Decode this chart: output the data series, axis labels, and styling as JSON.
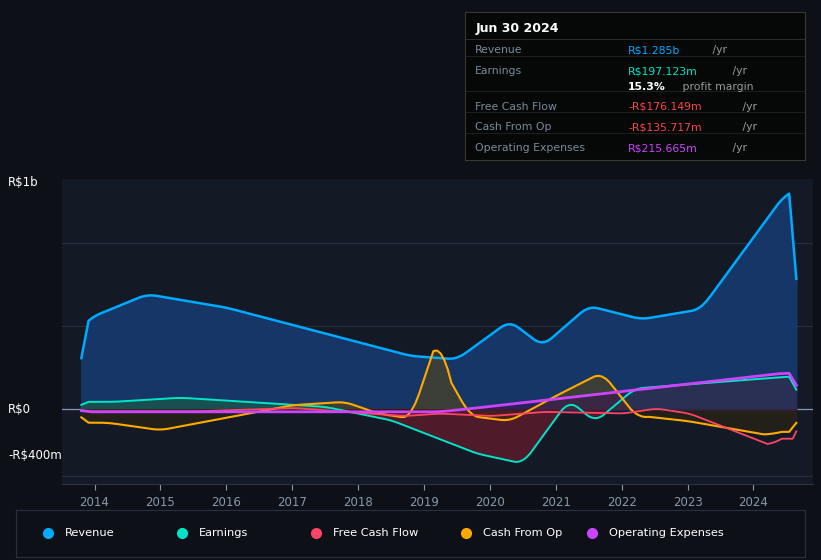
{
  "bg_color": "#0d1117",
  "plot_bg_color": "#131a25",
  "title": "Jun 30 2024",
  "ylabel_top": "R$1b",
  "ylabel_bottom": "-R$400m",
  "y0_label": "R$0",
  "xlim": [
    2013.5,
    2024.9
  ],
  "ylim": [
    -450,
    1380
  ],
  "x_ticks": [
    2014,
    2015,
    2016,
    2017,
    2018,
    2019,
    2020,
    2021,
    2022,
    2023,
    2024
  ],
  "grid_color": "#2a3548",
  "tick_color": "#8899aa",
  "revenue_color": "#00aaff",
  "earnings_color": "#00e5c8",
  "fcf_color": "#ff4466",
  "cashop_color": "#ffaa00",
  "opex_color": "#cc44ff",
  "legend_items": [
    {
      "label": "Revenue",
      "color": "#00aaff"
    },
    {
      "label": "Earnings",
      "color": "#00e5c8"
    },
    {
      "label": "Free Cash Flow",
      "color": "#ff4466"
    },
    {
      "label": "Cash From Op",
      "color": "#ffaa00"
    },
    {
      "label": "Operating Expenses",
      "color": "#cc44ff"
    }
  ],
  "info_rows": [
    {
      "label": "Revenue",
      "value": "R$1.285b",
      "unit": " /yr",
      "value_color": "#00aaff"
    },
    {
      "label": "Earnings",
      "value": "R$197.123m",
      "unit": " /yr",
      "value_color": "#00e5c8"
    },
    {
      "label": "",
      "value": "15.3%",
      "unit": " profit margin",
      "value_color": "#ffffff",
      "bold": true
    },
    {
      "label": "Free Cash Flow",
      "value": "-R$176.149m",
      "unit": " /yr",
      "value_color": "#ff4444"
    },
    {
      "label": "Cash From Op",
      "value": "-R$135.717m",
      "unit": " /yr",
      "value_color": "#ff4444"
    },
    {
      "label": "Operating Expenses",
      "value": "R$215.665m",
      "unit": " /yr",
      "value_color": "#cc44ff"
    }
  ]
}
